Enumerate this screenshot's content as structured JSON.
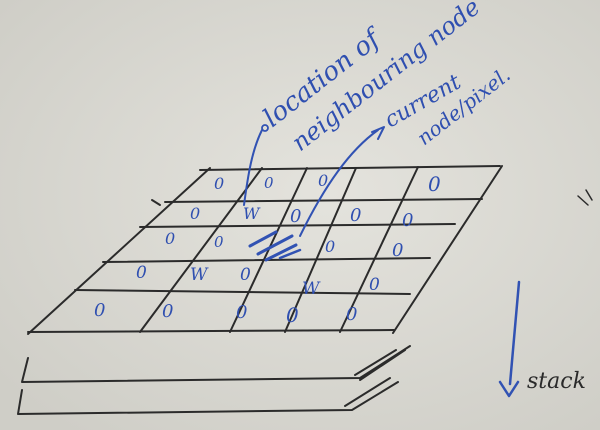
{
  "annotations": {
    "neighbour_line1": "location of",
    "neighbour_line2": "neighbouring node",
    "current_line1": "current",
    "current_line2": "node/pixel.",
    "stack_label": "stack"
  },
  "cell_marks": {
    "zero": "0",
    "w": "W"
  },
  "colors": {
    "paper": "#dcdbd5",
    "pencil": "#2b2b2b",
    "pen": "#3152b3"
  }
}
